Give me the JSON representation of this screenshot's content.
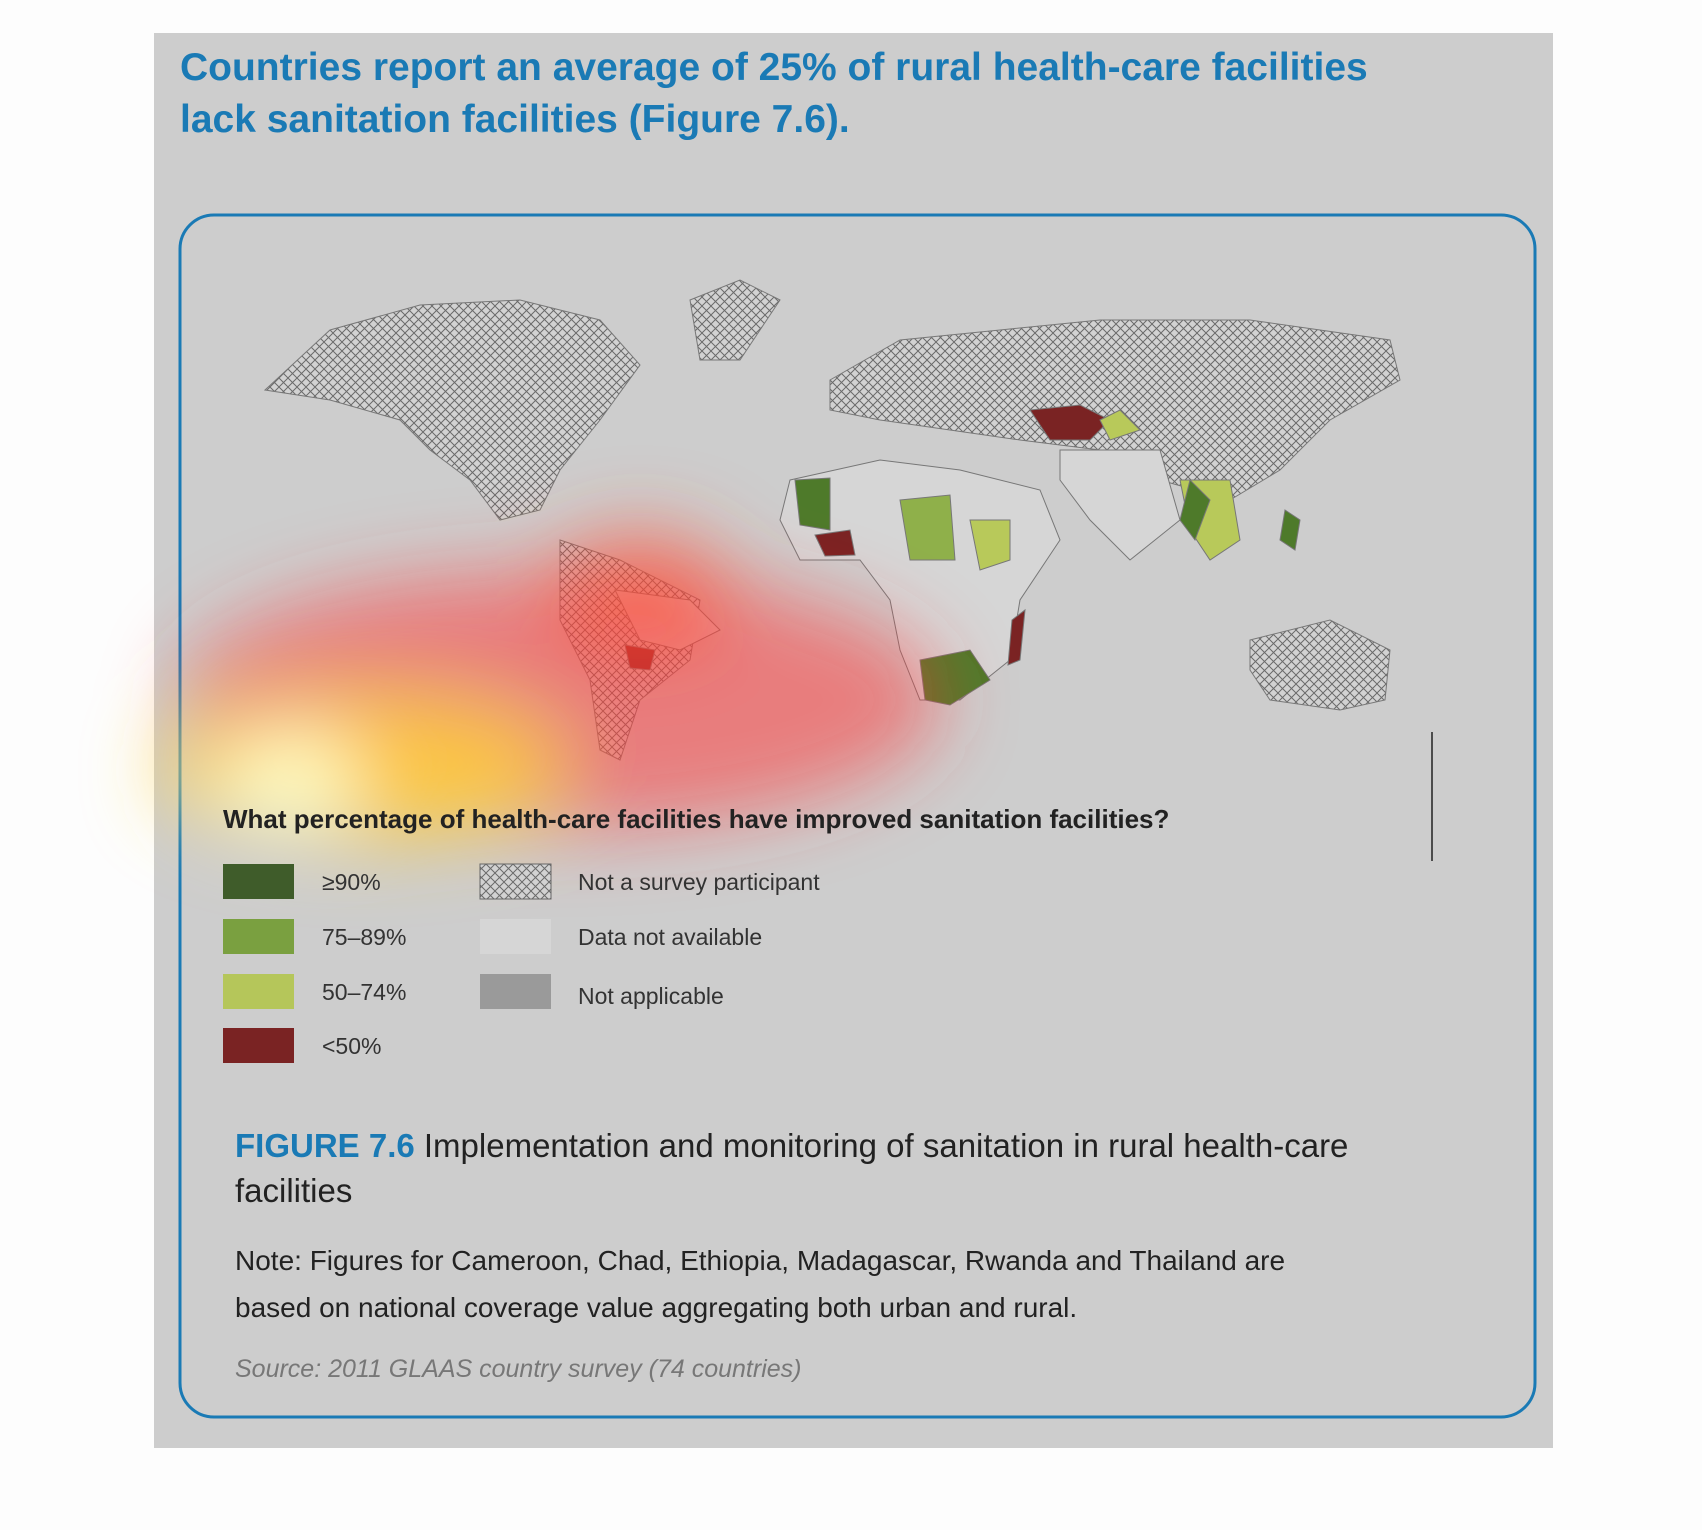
{
  "header": {
    "title": [
      "Countries report an average of 25% of rural health-care facilities",
      "lack sanitation facilities (Figure 7.6)."
    ]
  },
  "legend": {
    "title": "What percentage of health-care facilities have improved sanitation facilities?",
    "items": [
      {
        "label": "≥90%"
      },
      {
        "label": "75–89%"
      },
      {
        "label": "50–74%"
      },
      {
        "label": "<50%"
      },
      {
        "label": "Not a survey participant"
      },
      {
        "label": "Data not available"
      },
      {
        "label": "Not applicable"
      }
    ]
  },
  "caption": {
    "figure_number": "FIGURE 7.6",
    "text": [
      "Implementation and monitoring of sanitation in rural health-care",
      "facilities"
    ]
  },
  "note": [
    "Note: Figures for Cameroon, Chad, Ethiopia, Madagascar, Rwanda and Thailand are",
    "based on national coverage value aggregating both urban and rural."
  ],
  "source": "Source: 2011 GLAAS country survey (74 countries)"
}
